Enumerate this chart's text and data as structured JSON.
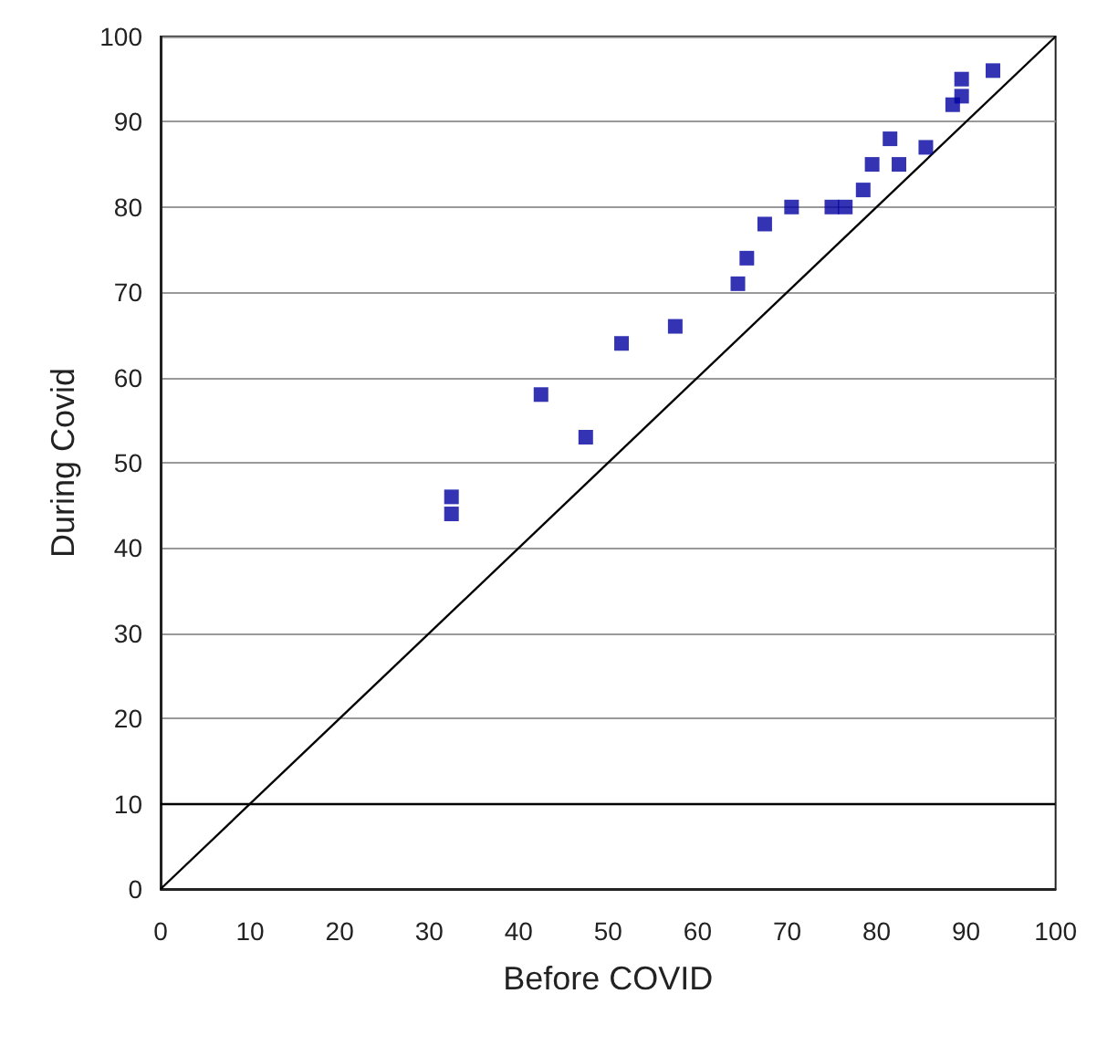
{
  "chart_data": {
    "type": "scatter",
    "xlabel": "Before COVID",
    "ylabel": "During Covid",
    "xlim": [
      0,
      100
    ],
    "ylim": [
      0,
      100
    ],
    "xticks": [
      0,
      10,
      20,
      30,
      40,
      50,
      60,
      70,
      80,
      90,
      100
    ],
    "yticks": [
      0,
      10,
      20,
      30,
      40,
      50,
      60,
      70,
      80,
      90,
      100
    ],
    "grid": "y",
    "marker": "square",
    "series": [
      {
        "color": "#0000a0",
        "x": [
          93,
          89.5,
          89.5,
          88.5,
          85.5,
          81.5,
          82.5,
          79.5,
          78.5,
          75,
          76.5,
          70.5,
          67.5,
          65.5,
          64.5,
          57.5,
          51.5,
          42.5,
          47.5,
          32.5,
          32.5
        ],
        "values": [
          96,
          95,
          93,
          92,
          87,
          88,
          85,
          85,
          82,
          80,
          80,
          80,
          78,
          74,
          71,
          66,
          64,
          58,
          53,
          46,
          44
        ]
      },
      {
        "type": "line",
        "color": "#000000",
        "marker": "none",
        "x": [
          0,
          100
        ],
        "values": [
          0,
          100
        ]
      }
    ],
    "ref_lines": [
      {
        "axis": "y",
        "value": 10,
        "color": "#000000"
      }
    ]
  }
}
